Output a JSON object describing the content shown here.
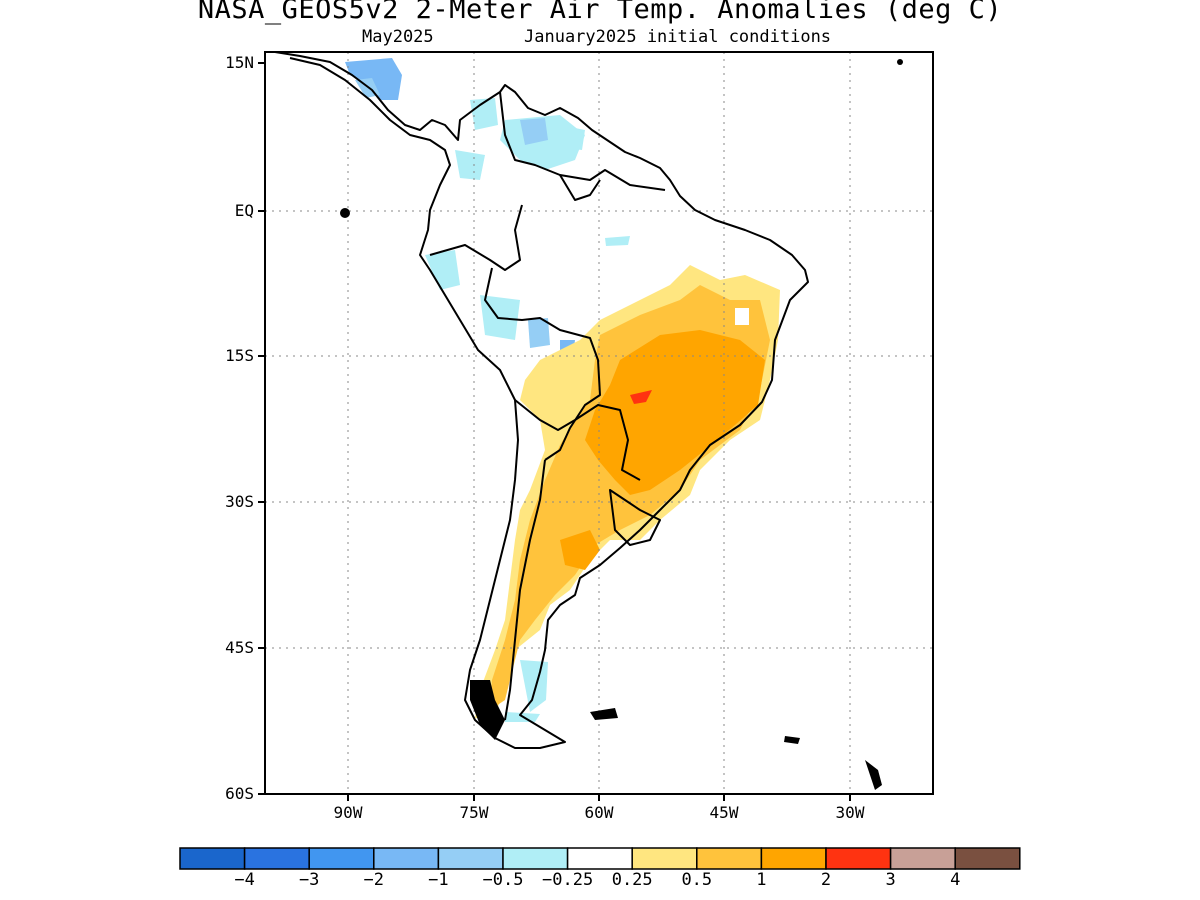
{
  "header": {
    "title": "NASA_GEOS5v2 2-Meter Air Temp. Anomalies (deg C)",
    "subtitle_left": "May2025",
    "subtitle_right": "January2025 initial conditions"
  },
  "map": {
    "region": "South America",
    "variable": "2-meter air temperature anomaly",
    "land_outline_color": "#000000",
    "grid_style": "dotted",
    "lat_ticks": [
      "15N",
      "EQ",
      "15S",
      "30S",
      "45S",
      "60S"
    ],
    "lon_ticks": [
      "90W",
      "75W",
      "60W",
      "45W",
      "30W"
    ],
    "anomaly_regions": [
      {
        "area": "Central Brazil",
        "category": "1 to 2",
        "color": "#ffa500"
      },
      {
        "area": "Southern Brazil",
        "category": "1 to 2",
        "color": "#ffa500"
      },
      {
        "area": "Mato Grosso do Sul",
        "category": "2 to 3",
        "color": "#ff3311"
      },
      {
        "area": "Northern Argentina",
        "category": "0.5 to 1",
        "color": "#ffc33c"
      },
      {
        "area": "Patagonia",
        "category": "0.5 to 1",
        "color": "#ffc33c"
      },
      {
        "area": "Venezuela/Colombia",
        "category": "-0.5 to -0.25",
        "color": "#b0eef6"
      },
      {
        "area": "Central America",
        "category": "-1 to -0.5",
        "color": "#95cef5"
      }
    ]
  },
  "colorbar": {
    "colors": [
      "#1a66cc",
      "#2a73e0",
      "#4196f0",
      "#78b8f5",
      "#95cef5",
      "#b0eef6",
      "#ffffff",
      "#ffe680",
      "#ffc33c",
      "#ffa500",
      "#ff3311",
      "#c8a097",
      "#7a5040"
    ],
    "labels": [
      "−4",
      "−3",
      "−2",
      "−1",
      "−0.5",
      "−0.25",
      "0.25",
      "0.5",
      "1",
      "2",
      "3",
      "4"
    ]
  }
}
